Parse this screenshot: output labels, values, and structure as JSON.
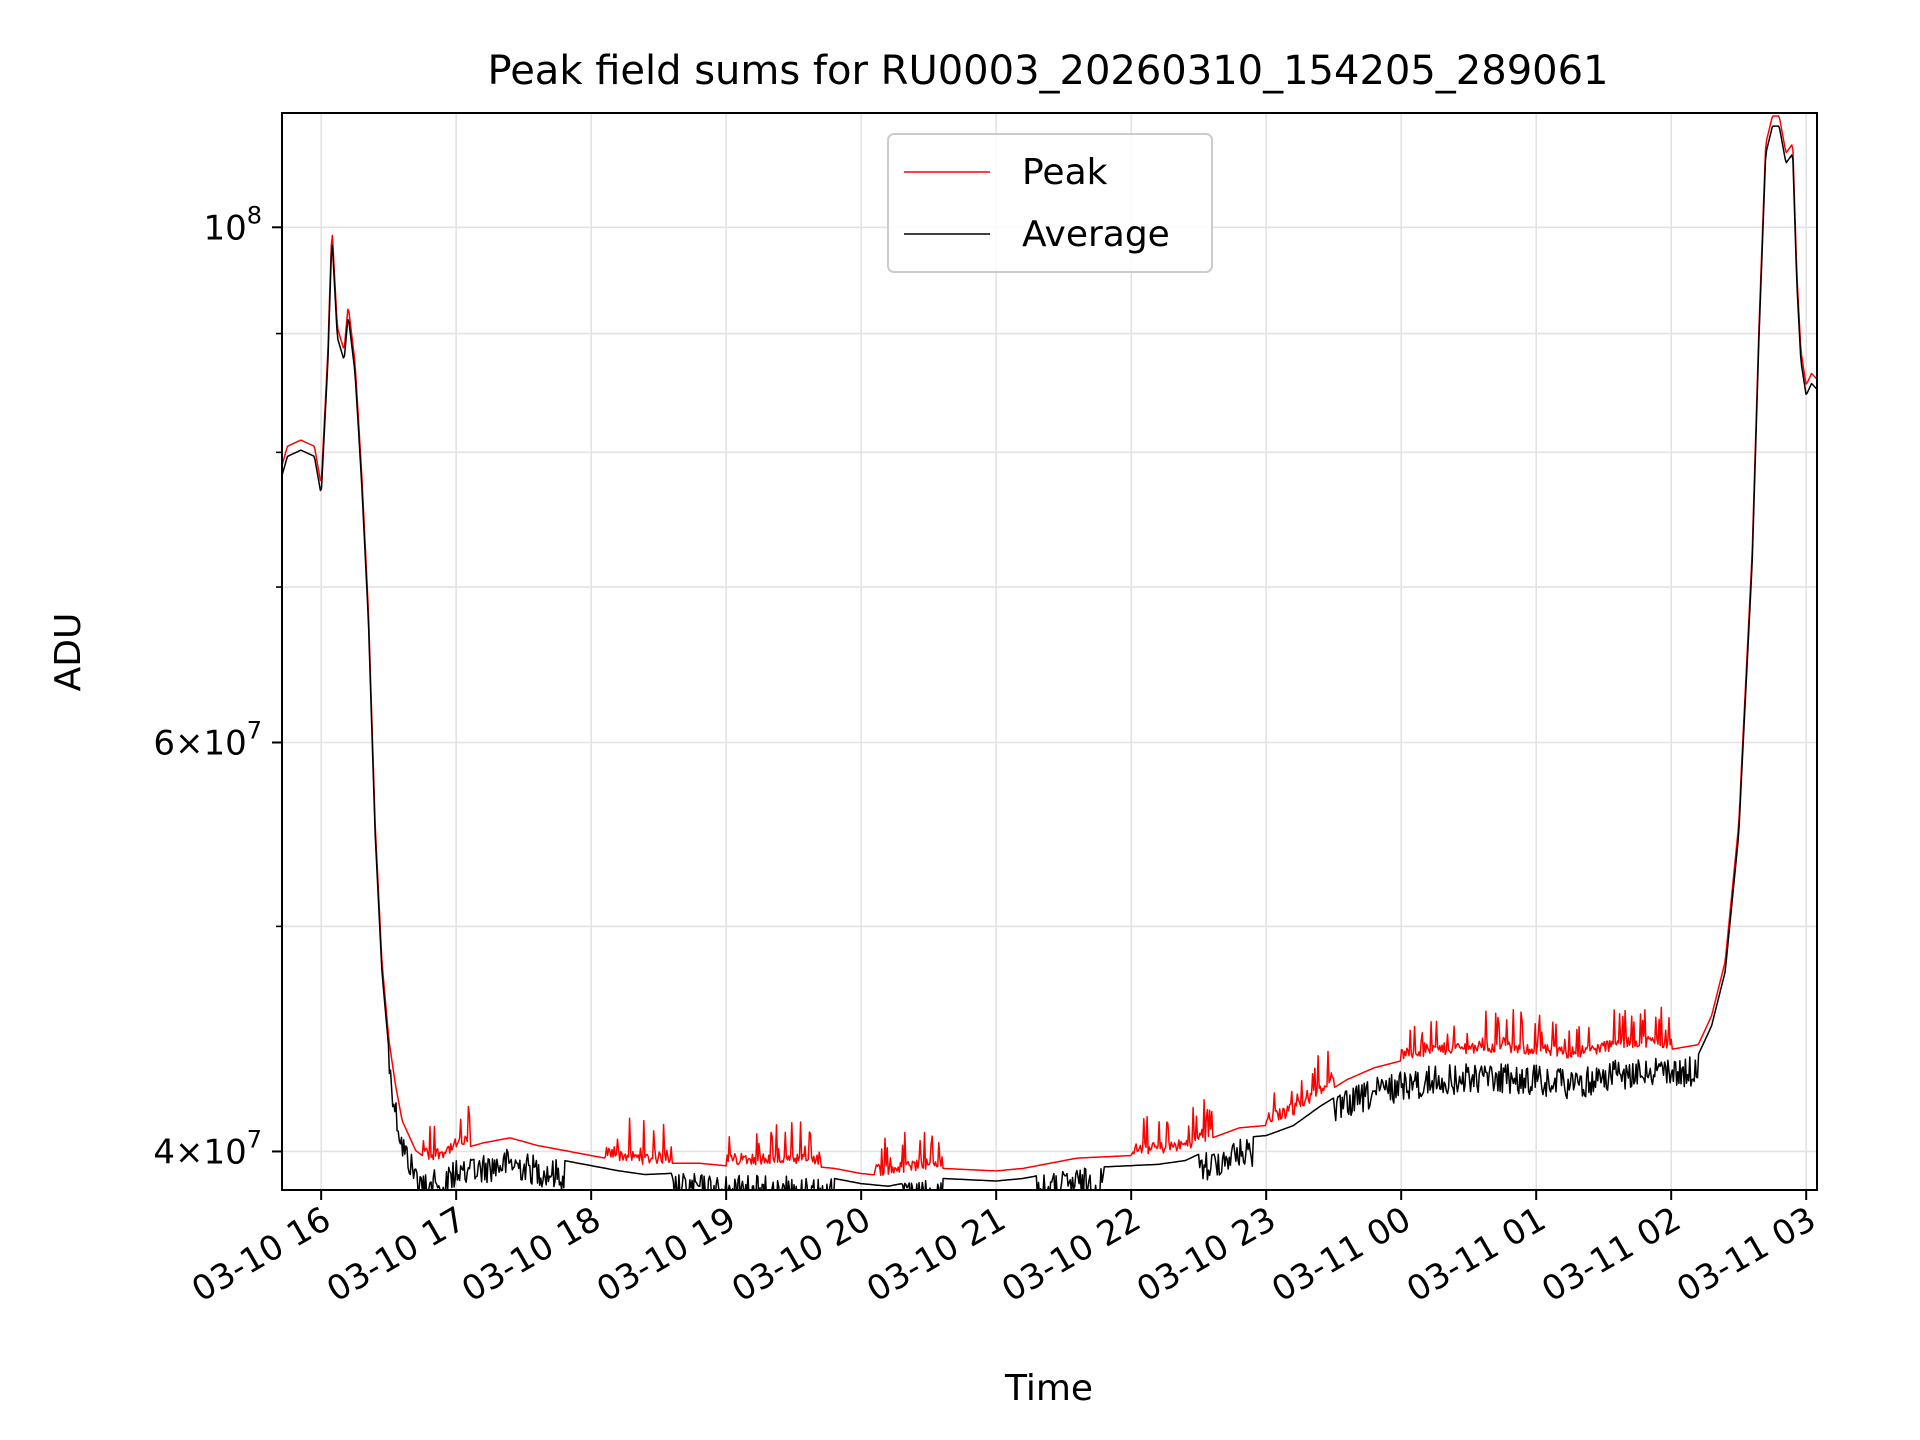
{
  "chart_data": {
    "type": "line",
    "title": "Peak field sums for RU0003_20260310_154205_289061",
    "xlabel": "Time",
    "ylabel": "ADU",
    "yscale": "log",
    "ylim": [
      38500000,
      112000000
    ],
    "xlim_hours": [
      15.71,
      27.08
    ],
    "grid": true,
    "legend_position": "top-center",
    "x_ticks": [
      {
        "hour": 16,
        "label": "03-10 16"
      },
      {
        "hour": 17,
        "label": "03-10 17"
      },
      {
        "hour": 18,
        "label": "03-10 18"
      },
      {
        "hour": 19,
        "label": "03-10 19"
      },
      {
        "hour": 20,
        "label": "03-10 20"
      },
      {
        "hour": 21,
        "label": "03-10 21"
      },
      {
        "hour": 22,
        "label": "03-10 22"
      },
      {
        "hour": 23,
        "label": "03-10 23"
      },
      {
        "hour": 24,
        "label": "03-11 00"
      },
      {
        "hour": 25,
        "label": "03-11 01"
      },
      {
        "hour": 26,
        "label": "03-11 02"
      },
      {
        "hour": 27,
        "label": "03-11 03"
      }
    ],
    "y_major_ticks": [
      {
        "value": 40000000,
        "base": "4×10",
        "exp": "7"
      },
      {
        "value": 60000000,
        "base": "6×10",
        "exp": "7"
      },
      {
        "value": 100000000,
        "base": "10",
        "exp": "8"
      }
    ],
    "y_minor_ticks": [
      50000000,
      70000000,
      80000000,
      90000000
    ],
    "series": [
      {
        "name": "Peak",
        "color": "#ff0000",
        "offset_frac": 0.006,
        "points": [
          [
            15.71,
            78500000
          ],
          [
            15.75,
            80000000
          ],
          [
            15.85,
            80500000
          ],
          [
            15.95,
            80000000
          ],
          [
            16.0,
            77000000
          ],
          [
            16.05,
            88000000
          ],
          [
            16.08,
            99500000
          ],
          [
            16.12,
            90000000
          ],
          [
            16.17,
            88000000
          ],
          [
            16.2,
            92000000
          ],
          [
            16.25,
            87000000
          ],
          [
            16.3,
            78000000
          ],
          [
            16.35,
            68000000
          ],
          [
            16.4,
            55000000
          ],
          [
            16.45,
            48000000
          ],
          [
            16.5,
            44500000
          ],
          [
            16.55,
            42500000
          ],
          [
            16.6,
            41000000
          ],
          [
            16.7,
            39800000
          ],
          [
            16.8,
            39400000
          ],
          [
            16.9,
            39500000
          ],
          [
            17.0,
            39800000
          ],
          [
            17.2,
            40100000
          ],
          [
            17.4,
            40300000
          ],
          [
            17.6,
            40000000
          ],
          [
            17.8,
            39800000
          ],
          [
            18.0,
            39600000
          ],
          [
            18.2,
            39400000
          ],
          [
            18.4,
            39250000
          ],
          [
            18.6,
            39300000
          ],
          [
            18.8,
            39300000
          ],
          [
            19.0,
            39200000
          ],
          [
            19.2,
            39250000
          ],
          [
            19.4,
            39200000
          ],
          [
            19.6,
            39200000
          ],
          [
            19.8,
            39100000
          ],
          [
            20.0,
            38900000
          ],
          [
            20.2,
            38800000
          ],
          [
            20.4,
            39000000
          ],
          [
            20.6,
            39100000
          ],
          [
            20.8,
            39050000
          ],
          [
            21.0,
            39000000
          ],
          [
            21.2,
            39100000
          ],
          [
            21.4,
            39300000
          ],
          [
            21.6,
            39500000
          ],
          [
            21.8,
            39550000
          ],
          [
            22.0,
            39600000
          ],
          [
            22.2,
            39650000
          ],
          [
            22.4,
            39800000
          ],
          [
            22.6,
            40300000
          ],
          [
            22.8,
            40700000
          ],
          [
            23.0,
            40800000
          ],
          [
            23.2,
            41200000
          ],
          [
            23.4,
            42000000
          ],
          [
            23.6,
            42700000
          ],
          [
            23.8,
            43200000
          ],
          [
            24.0,
            43500000
          ],
          [
            24.2,
            43700000
          ],
          [
            24.4,
            43800000
          ],
          [
            24.6,
            43850000
          ],
          [
            24.8,
            43800000
          ],
          [
            25.0,
            43750000
          ],
          [
            25.2,
            43600000
          ],
          [
            25.4,
            43700000
          ],
          [
            25.6,
            44000000
          ],
          [
            25.8,
            44100000
          ],
          [
            26.0,
            44000000
          ],
          [
            26.2,
            44200000
          ],
          [
            26.3,
            45500000
          ],
          [
            26.4,
            48000000
          ],
          [
            26.5,
            55000000
          ],
          [
            26.6,
            72000000
          ],
          [
            26.65,
            90000000
          ],
          [
            26.7,
            108000000
          ],
          [
            26.75,
            111000000
          ],
          [
            26.8,
            111000000
          ],
          [
            26.85,
            107000000
          ],
          [
            26.9,
            108000000
          ],
          [
            26.93,
            95000000
          ],
          [
            26.96,
            88000000
          ],
          [
            27.0,
            85000000
          ],
          [
            27.04,
            86000000
          ],
          [
            27.08,
            85500000
          ]
        ]
      },
      {
        "name": "Average",
        "color": "#000000",
        "offset_frac": -0.004,
        "points": [
          [
            15.71,
            78500000
          ],
          [
            15.75,
            80000000
          ],
          [
            15.85,
            80500000
          ],
          [
            15.95,
            80000000
          ],
          [
            16.0,
            77000000
          ],
          [
            16.05,
            88000000
          ],
          [
            16.08,
            99500000
          ],
          [
            16.12,
            90000000
          ],
          [
            16.17,
            88000000
          ],
          [
            16.2,
            92000000
          ],
          [
            16.25,
            87000000
          ],
          [
            16.3,
            78000000
          ],
          [
            16.35,
            68000000
          ],
          [
            16.4,
            55000000
          ],
          [
            16.45,
            48000000
          ],
          [
            16.5,
            44500000
          ],
          [
            16.55,
            42500000
          ],
          [
            16.6,
            41000000
          ],
          [
            16.7,
            39800000
          ],
          [
            16.8,
            39400000
          ],
          [
            16.9,
            39500000
          ],
          [
            17.0,
            39800000
          ],
          [
            17.2,
            40100000
          ],
          [
            17.4,
            40300000
          ],
          [
            17.6,
            40000000
          ],
          [
            17.8,
            39800000
          ],
          [
            18.0,
            39600000
          ],
          [
            18.2,
            39400000
          ],
          [
            18.4,
            39250000
          ],
          [
            18.6,
            39300000
          ],
          [
            18.8,
            39300000
          ],
          [
            19.0,
            39200000
          ],
          [
            19.2,
            39250000
          ],
          [
            19.4,
            39200000
          ],
          [
            19.6,
            39200000
          ],
          [
            19.8,
            39100000
          ],
          [
            20.0,
            38900000
          ],
          [
            20.2,
            38800000
          ],
          [
            20.4,
            39000000
          ],
          [
            20.6,
            39100000
          ],
          [
            20.8,
            39050000
          ],
          [
            21.0,
            39000000
          ],
          [
            21.2,
            39100000
          ],
          [
            21.4,
            39300000
          ],
          [
            21.6,
            39500000
          ],
          [
            21.8,
            39550000
          ],
          [
            22.0,
            39600000
          ],
          [
            22.2,
            39650000
          ],
          [
            22.4,
            39800000
          ],
          [
            22.6,
            40300000
          ],
          [
            22.8,
            40700000
          ],
          [
            23.0,
            40800000
          ],
          [
            23.2,
            41200000
          ],
          [
            23.4,
            42000000
          ],
          [
            23.6,
            42700000
          ],
          [
            23.8,
            43200000
          ],
          [
            24.0,
            43500000
          ],
          [
            24.2,
            43700000
          ],
          [
            24.4,
            43800000
          ],
          [
            24.6,
            43850000
          ],
          [
            24.8,
            43800000
          ],
          [
            25.0,
            43750000
          ],
          [
            25.2,
            43600000
          ],
          [
            25.4,
            43700000
          ],
          [
            25.6,
            44000000
          ],
          [
            25.8,
            44100000
          ],
          [
            26.0,
            44000000
          ],
          [
            26.2,
            44200000
          ],
          [
            26.3,
            45500000
          ],
          [
            26.4,
            48000000
          ],
          [
            26.5,
            55000000
          ],
          [
            26.6,
            72000000
          ],
          [
            26.65,
            90000000
          ],
          [
            26.7,
            108000000
          ],
          [
            26.75,
            111000000
          ],
          [
            26.8,
            111000000
          ],
          [
            26.85,
            107000000
          ],
          [
            26.9,
            108000000
          ],
          [
            26.93,
            95000000
          ],
          [
            26.96,
            88000000
          ],
          [
            27.0,
            85000000
          ],
          [
            27.04,
            86000000
          ],
          [
            27.08,
            85500000
          ]
        ]
      }
    ],
    "noise": {
      "peak_spike_ranges": [
        [
          16.75,
          17.1
        ],
        [
          18.1,
          18.6
        ],
        [
          19.0,
          19.7
        ],
        [
          20.1,
          20.6
        ],
        [
          22.0,
          22.6
        ],
        [
          23.0,
          23.5
        ],
        [
          24.0,
          25.3
        ],
        [
          25.3,
          26.0
        ]
      ],
      "avg_dip_ranges": [
        [
          16.5,
          17.8
        ],
        [
          18.6,
          19.8
        ],
        [
          20.3,
          20.6
        ],
        [
          21.3,
          21.8
        ],
        [
          22.5,
          22.9
        ],
        [
          23.5,
          26.2
        ]
      ]
    }
  }
}
